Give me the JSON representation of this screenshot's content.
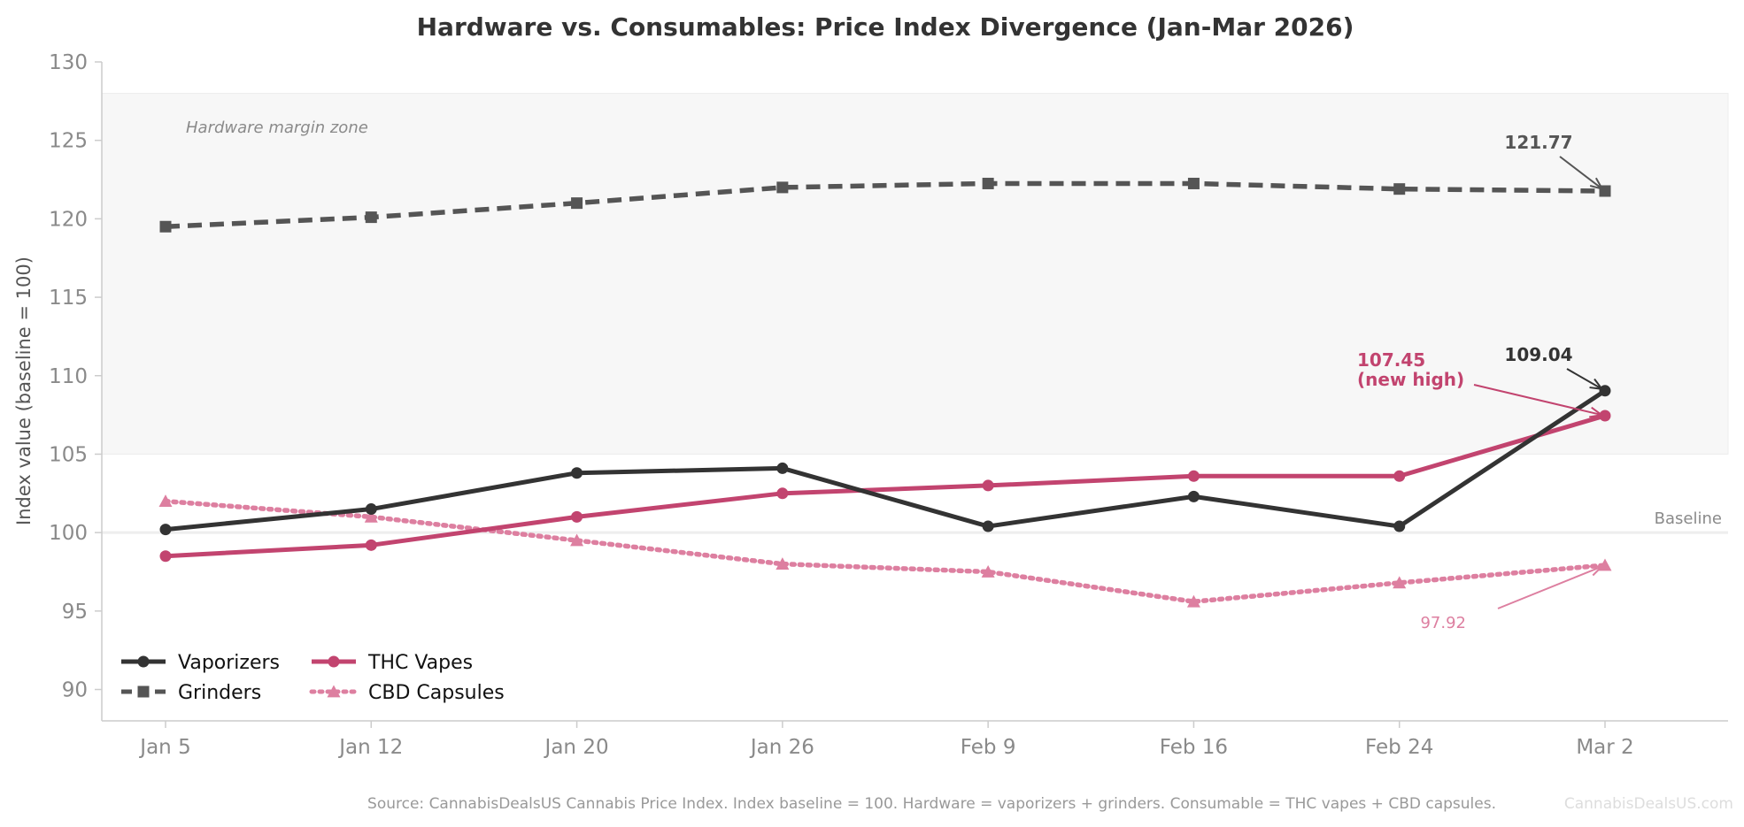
{
  "chart_data": {
    "type": "line",
    "title": "Hardware vs. Consumables: Price Index Divergence (Jan-Mar 2026)",
    "xlabel": "",
    "ylabel": "Index value (baseline = 100)",
    "categories": [
      "Jan 5",
      "Jan 12",
      "Jan 20",
      "Jan 26",
      "Feb 9",
      "Feb 16",
      "Feb 24",
      "Mar 2"
    ],
    "ylim": [
      88,
      130
    ],
    "yticks": [
      90,
      95,
      100,
      105,
      110,
      115,
      120,
      125,
      130
    ],
    "grid": false,
    "legend_placement": "lower-left",
    "series": [
      {
        "name": "Vaporizers",
        "values": [
          100.2,
          101.5,
          103.8,
          104.1,
          100.4,
          102.3,
          100.4,
          109.04
        ],
        "color": "#333333",
        "marker": "circle",
        "dash": "solid"
      },
      {
        "name": "Grinders",
        "values": [
          119.5,
          120.1,
          121.0,
          122.0,
          122.25,
          122.25,
          121.9,
          121.77
        ],
        "color": "#555555",
        "marker": "square",
        "dash": "dashed"
      },
      {
        "name": "THC Vapes",
        "values": [
          98.5,
          99.2,
          101.0,
          102.5,
          103.0,
          103.6,
          103.6,
          107.45
        ],
        "color": "#c2446f",
        "marker": "circle",
        "dash": "solid"
      },
      {
        "name": "CBD Capsules",
        "values": [
          102.0,
          101.0,
          99.5,
          98.0,
          97.5,
          95.6,
          96.8,
          97.92
        ],
        "color": "#dd7fa0",
        "marker": "triangle",
        "dash": "dotted"
      }
    ],
    "shaded_zone": {
      "label": "Hardware margin zone",
      "y_range": [
        105,
        128
      ]
    },
    "baseline": {
      "value": 100,
      "label": "Baseline"
    },
    "annotations": [
      {
        "series": "Grinders",
        "x": "Mar 2",
        "y": 121.77,
        "text": "121.77",
        "color": "#555555"
      },
      {
        "series": "Vaporizers",
        "x": "Mar 2",
        "y": 109.04,
        "text": "109.04",
        "color": "#333333"
      },
      {
        "series": "THC Vapes",
        "x": "Mar 2",
        "y": 107.45,
        "text_lines": [
          "107.45",
          "(new high)"
        ],
        "color": "#c2446f"
      },
      {
        "series": "CBD Capsules",
        "x": "Mar 2",
        "y": 97.92,
        "text": "97.92",
        "color": "#dd7fa0"
      }
    ],
    "source_note": "Source: CannabisDealsUS Cannabis Price Index. Index baseline = 100. Hardware = vaporizers + grinders. Consumable = THC vapes + CBD capsules.",
    "watermark": "CannabisDealsUS.com"
  }
}
